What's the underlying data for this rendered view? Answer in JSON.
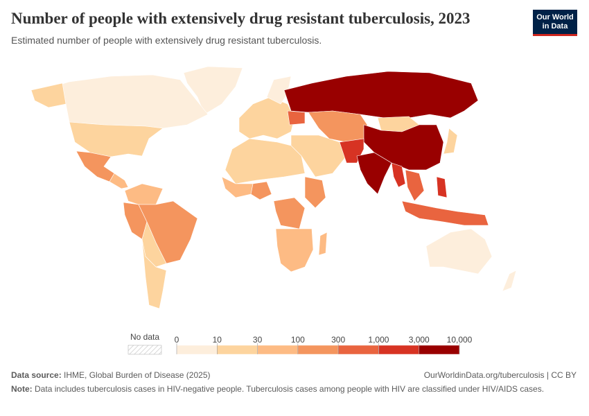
{
  "header": {
    "title": "Number of people with extensively drug resistant tuberculosis, 2023",
    "subtitle": "Estimated number of people with extensively drug resistant tuberculosis."
  },
  "logo": {
    "line1": "Our World",
    "line2": "in Data"
  },
  "legend": {
    "no_data": "No data",
    "ticks": [
      0,
      10,
      30,
      100,
      300,
      {
        "value": 1000,
        "label": "1,000"
      },
      {
        "value": 3000,
        "label": "3,000"
      },
      {
        "value": 10000,
        "label": "10,000"
      }
    ],
    "colors": [
      "#fdeedc",
      "#fdd49e",
      "#fdbb84",
      "#f4955e",
      "#e9643f",
      "#d73323",
      "#990000"
    ]
  },
  "footer": {
    "source_label": "Data source:",
    "source": "IHME, Global Burden of Disease (2025)",
    "url": "OurWorldinData.org/tuberculosis | CC BY",
    "note_label": "Note:",
    "note": "Data includes tuberculosis cases in HIV-negative people. Tuberculosis cases among people with HIV are classified under HIV/AIDS cases."
  }
}
